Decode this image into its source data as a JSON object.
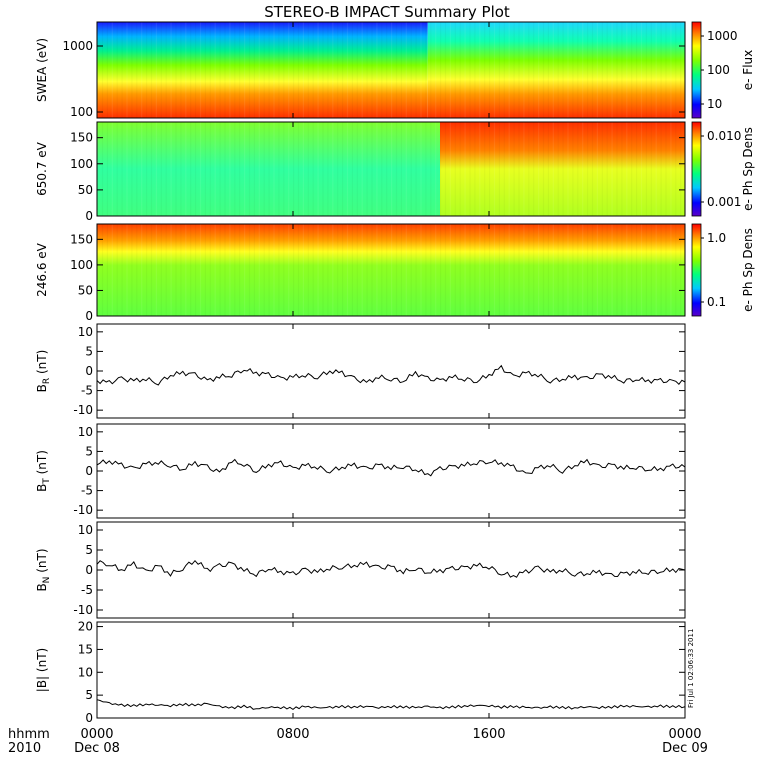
{
  "title": "STEREO-B IMPACT Summary Plot",
  "x_axis": {
    "label_line1": "hhmm",
    "label_line2": "2010",
    "ticks": [
      {
        "top": "0000",
        "bottom": "Dec 08",
        "hour": 0
      },
      {
        "top": "0800",
        "bottom": "",
        "hour": 8
      },
      {
        "top": "1600",
        "bottom": "",
        "hour": 16
      },
      {
        "top": "0000",
        "bottom": "Dec 09",
        "hour": 24
      }
    ],
    "range_hours": [
      0,
      24
    ]
  },
  "timestamp_note": "Fri Jul  1 02:06:33 2011",
  "colors": {
    "spectrogram_scale": [
      "#5a00c8",
      "#0000ff",
      "#00c8ff",
      "#00ff7f",
      "#7fff00",
      "#ffff00",
      "#ff7f00",
      "#ff0000"
    ],
    "line": "#000000",
    "axis": "#000000"
  },
  "chart_data": [
    {
      "type": "heatmap",
      "ylabel": "SWEA (eV)",
      "ylog": true,
      "yticks": [
        "1000",
        "100"
      ],
      "colorbar_label": "e- Flux",
      "colorbar_ticks": [
        "1000",
        "100",
        "10"
      ],
      "description_of_values": "energy-time spectrogram, high flux at low energy"
    },
    {
      "type": "heatmap",
      "ylabel": "650.7 eV",
      "yticks": [
        "150",
        "100",
        "50",
        "0"
      ],
      "ylim": [
        0,
        180
      ],
      "colorbar_label": "e- Ph Sp Dens",
      "colorbar_ticks": [
        "0.010",
        "0.001"
      ]
    },
    {
      "type": "heatmap",
      "ylabel": "246.6 eV",
      "yticks": [
        "150",
        "100",
        "50",
        "0"
      ],
      "ylim": [
        0,
        180
      ],
      "colorbar_label": "e- Ph Sp Dens",
      "colorbar_ticks": [
        "1.0",
        "0.1"
      ]
    },
    {
      "type": "line",
      "ylabel_main": "B",
      "ylabel_sub": "R",
      "ylabel_unit": "(nT)",
      "ylim": [
        -12,
        12
      ],
      "yticks": [
        "10",
        "5",
        "0",
        "-5",
        "-10"
      ],
      "x": [
        0,
        0.5,
        1,
        1.5,
        2,
        2.5,
        3,
        3.5,
        4,
        4.5,
        5,
        5.5,
        6,
        6.5,
        7,
        7.5,
        8,
        8.5,
        9,
        9.5,
        10,
        10.5,
        11,
        11.5,
        12,
        12.5,
        13,
        13.5,
        14,
        14.5,
        15,
        15.5,
        16,
        16.5,
        17,
        17.5,
        18,
        18.5,
        19,
        19.5,
        20,
        20.5,
        21,
        21.5,
        22,
        22.5,
        23,
        23.5,
        24
      ],
      "y": [
        -2.5,
        -3,
        -2,
        -2.5,
        -2,
        -3,
        -1,
        -0.5,
        -1,
        -2.5,
        -1.5,
        -1,
        0.5,
        -0.5,
        -1,
        -2,
        -1.5,
        -1,
        -1.5,
        0,
        -0.5,
        -2,
        -3,
        -1.5,
        -2,
        -2.5,
        -0.5,
        -2,
        -2.5,
        -1.5,
        -2,
        -2.5,
        -1,
        0.8,
        -1.5,
        -0.5,
        -1,
        -2.5,
        -2,
        -1.5,
        -2,
        -1,
        -1.5,
        -2.5,
        -2,
        -2.5,
        -2.5,
        -2.8,
        -2.8
      ]
    },
    {
      "type": "line",
      "ylabel_main": "B",
      "ylabel_sub": "T",
      "ylabel_unit": "(nT)",
      "ylim": [
        -12,
        12
      ],
      "yticks": [
        "10",
        "5",
        "0",
        "-5",
        "-10"
      ],
      "x": [
        0,
        0.5,
        1,
        1.5,
        2,
        2.5,
        3,
        3.5,
        4,
        4.5,
        5,
        5.5,
        6,
        6.5,
        7,
        7.5,
        8,
        8.5,
        9,
        9.5,
        10,
        10.5,
        11,
        11.5,
        12,
        12.5,
        13,
        13.5,
        14,
        14.5,
        15,
        15.5,
        16,
        16.5,
        17,
        17.5,
        18,
        18.5,
        19,
        19.5,
        20,
        20.5,
        21,
        21.5,
        22,
        22.5,
        23,
        23.5,
        24
      ],
      "y": [
        2,
        2.5,
        1.5,
        0.5,
        1.8,
        2.2,
        1.5,
        0.5,
        2,
        1,
        -0.5,
        2.5,
        1.8,
        0,
        1.5,
        2,
        0.5,
        1.5,
        1,
        0,
        1,
        1.5,
        0.5,
        1.5,
        0.8,
        1.2,
        0.5,
        -1,
        0.5,
        1,
        1.5,
        2.2,
        2.5,
        2,
        1,
        -1,
        0.8,
        1.5,
        0,
        1.5,
        2.5,
        1,
        1.5,
        0.8,
        1,
        0.5,
        0.5,
        1.2,
        1
      ]
    },
    {
      "type": "line",
      "ylabel_main": "B",
      "ylabel_sub": "N",
      "ylabel_unit": "(nT)",
      "ylim": [
        -12,
        12
      ],
      "yticks": [
        "10",
        "5",
        "0",
        "-5",
        "-10"
      ],
      "x": [
        0,
        0.5,
        1,
        1.5,
        2,
        2.5,
        3,
        3.5,
        4,
        4.5,
        5,
        5.5,
        6,
        6.5,
        7,
        7.5,
        8,
        8.5,
        9,
        9.5,
        10,
        10.5,
        11,
        11.5,
        12,
        12.5,
        13,
        13.5,
        14,
        14.5,
        15,
        15.5,
        16,
        16.5,
        17,
        17.5,
        18,
        18.5,
        19,
        19.5,
        20,
        20.5,
        21,
        21.5,
        22,
        22.5,
        23,
        23.5,
        24
      ],
      "y": [
        2,
        1.5,
        0,
        1.5,
        -0.5,
        1,
        -1,
        0.5,
        2.5,
        0,
        1,
        1.5,
        0,
        -1,
        0.5,
        -0.5,
        -1,
        0,
        -0.5,
        0.5,
        0.8,
        1.2,
        1.5,
        0.5,
        0.8,
        -0.5,
        0.5,
        -0.5,
        -0.2,
        0.3,
        0.5,
        1.2,
        0.8,
        -0.8,
        -1.5,
        -0.5,
        0.5,
        -0.5,
        0,
        -1,
        -0.8,
        -0.5,
        -1.5,
        -1,
        -0.5,
        -0.5,
        -0.2,
        0,
        0
      ]
    },
    {
      "type": "line",
      "ylabel_main": "|B|",
      "ylabel_unit": "(nT)",
      "ylim": [
        0,
        21
      ],
      "yticks": [
        "20",
        "15",
        "10",
        "5",
        "0"
      ],
      "x": [
        0,
        0.5,
        1,
        1.5,
        2,
        2.5,
        3,
        3.5,
        4,
        4.5,
        5,
        5.5,
        6,
        6.5,
        7,
        7.5,
        8,
        8.5,
        9,
        9.5,
        10,
        10.5,
        11,
        11.5,
        12,
        12.5,
        13,
        13.5,
        14,
        14.5,
        15,
        15.5,
        16,
        16.5,
        17,
        17.5,
        18,
        18.5,
        19,
        19.5,
        20,
        20.5,
        21,
        21.5,
        22,
        22.5,
        23,
        23.5,
        24
      ],
      "y": [
        4,
        3.2,
        2.8,
        2.7,
        3,
        2.9,
        2.7,
        3,
        2.8,
        3.1,
        2.5,
        2.2,
        2.6,
        2,
        2.4,
        2.3,
        2.1,
        2.5,
        2.2,
        2.3,
        2.5,
        2.4,
        2.6,
        2.3,
        2.5,
        2.4,
        2.3,
        2.5,
        2.2,
        2.4,
        2.6,
        2.8,
        2.7,
        2.4,
        2.5,
        2.3,
        2.2,
        2.4,
        2.3,
        2.2,
        2.5,
        2.3,
        2.4,
        2.6,
        2.5,
        2.4,
        2.6,
        2.5,
        2.5
      ]
    }
  ]
}
